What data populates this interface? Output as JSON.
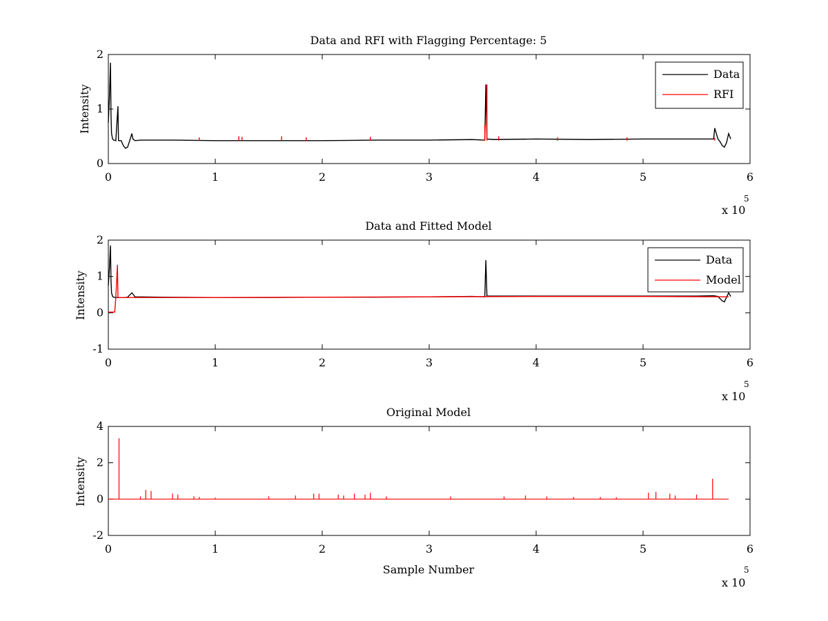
{
  "colors": {
    "data": "#000000",
    "rfi": "#ff0000",
    "background": "#ffffff"
  },
  "chart_data": [
    {
      "type": "line",
      "title": "Data and RFI with Flagging Percentage: 5",
      "xlabel": "",
      "ylabel": "Intensity",
      "xlim": [
        0,
        6
      ],
      "ylim": [
        0,
        2
      ],
      "x_multiplier": "x 10",
      "x_multiplier_exp": "5",
      "xticks": [
        "0",
        "1",
        "2",
        "3",
        "4",
        "5",
        "6"
      ],
      "yticks": [
        "0",
        "1",
        "2"
      ],
      "legend": {
        "position": "top-right",
        "entries": [
          "Data",
          "RFI"
        ]
      },
      "grid": false,
      "series": [
        {
          "name": "Data",
          "color": "#000000",
          "x": [
            0,
            0.01,
            0.02,
            0.025,
            0.03,
            0.04,
            0.05,
            0.07,
            0.09,
            0.095,
            0.1,
            0.12,
            0.14,
            0.16,
            0.18,
            0.2,
            0.22,
            0.23,
            0.25,
            0.3,
            0.6,
            1.0,
            1.5,
            2.0,
            2.5,
            3.0,
            3.4,
            3.52,
            3.53,
            3.54,
            3.6,
            4.0,
            4.5,
            5.0,
            5.5,
            5.66,
            5.67,
            5.7,
            5.72,
            5.74,
            5.76,
            5.78,
            5.8,
            5.82
          ],
          "y": [
            0.75,
            1.2,
            1.85,
            0.9,
            0.55,
            0.45,
            0.43,
            0.42,
            1.05,
            0.42,
            0.42,
            0.42,
            0.33,
            0.28,
            0.3,
            0.42,
            0.55,
            0.45,
            0.42,
            0.43,
            0.43,
            0.42,
            0.42,
            0.42,
            0.43,
            0.43,
            0.44,
            0.43,
            1.45,
            0.45,
            0.44,
            0.45,
            0.44,
            0.45,
            0.45,
            0.45,
            0.65,
            0.45,
            0.4,
            0.33,
            0.3,
            0.38,
            0.55,
            0.45
          ]
        },
        {
          "name": "RFI",
          "color": "#ff0000",
          "x": [
            0.85,
            1.22,
            1.25,
            1.62,
            1.85,
            2.45,
            3.52,
            3.54,
            3.65,
            4.2,
            4.85,
            5.67
          ],
          "y": [
            0.48,
            0.5,
            0.49,
            0.5,
            0.48,
            0.49,
            0.7,
            1.45,
            0.5,
            0.48,
            0.48,
            0.47
          ]
        }
      ]
    },
    {
      "type": "line",
      "title": "Data and Fitted Model",
      "xlabel": "",
      "ylabel": "Intensity",
      "xlim": [
        0,
        6
      ],
      "ylim": [
        -1,
        2
      ],
      "x_multiplier": "x 10",
      "x_multiplier_exp": "5",
      "xticks": [
        "0",
        "1",
        "2",
        "3",
        "4",
        "5",
        "6"
      ],
      "yticks": [
        "-1",
        "0",
        "1",
        "2"
      ],
      "legend": {
        "position": "top-right",
        "entries": [
          "Data",
          "Model"
        ]
      },
      "grid": false,
      "series": [
        {
          "name": "Data",
          "color": "#000000",
          "x": [
            0,
            0.01,
            0.02,
            0.025,
            0.03,
            0.04,
            0.05,
            0.07,
            0.09,
            0.1,
            0.15,
            0.18,
            0.22,
            0.25,
            0.5,
            1.0,
            1.5,
            2.0,
            2.5,
            3.0,
            3.4,
            3.52,
            3.53,
            3.54,
            4.0,
            4.5,
            5.0,
            5.5,
            5.66,
            5.7,
            5.74,
            5.76,
            5.8,
            5.82
          ],
          "y": [
            0.75,
            1.2,
            1.85,
            0.9,
            0.55,
            0.45,
            0.43,
            0.42,
            0.42,
            0.42,
            0.42,
            0.43,
            0.55,
            0.44,
            0.43,
            0.42,
            0.42,
            0.43,
            0.43,
            0.44,
            0.45,
            0.44,
            1.45,
            0.46,
            0.46,
            0.46,
            0.46,
            0.46,
            0.47,
            0.45,
            0.33,
            0.3,
            0.55,
            0.45
          ]
        },
        {
          "name": "Model",
          "color": "#ff0000",
          "x": [
            0,
            0.06,
            0.07,
            0.085,
            0.09,
            0.1,
            0.5,
            1.0,
            2.0,
            3.0,
            4.0,
            5.0,
            5.8
          ],
          "y": [
            0.02,
            0.02,
            0.42,
            1.32,
            0.42,
            0.42,
            0.42,
            0.42,
            0.43,
            0.44,
            0.45,
            0.45,
            0.44
          ]
        }
      ]
    },
    {
      "type": "line",
      "title": "Original Model",
      "xlabel": "Sample Number",
      "ylabel": "Intensity",
      "xlim": [
        0,
        6
      ],
      "ylim": [
        -2,
        4
      ],
      "x_multiplier": "x 10",
      "x_multiplier_exp": "5",
      "xticks": [
        "0",
        "1",
        "2",
        "3",
        "4",
        "5",
        "6"
      ],
      "yticks": [
        "-2",
        "0",
        "2",
        "4"
      ],
      "legend": null,
      "grid": false,
      "series": [
        {
          "name": "Model",
          "color": "#ff0000",
          "baseline": 0,
          "x_end": 5.8,
          "spikes": [
            [
              0.1,
              3.35
            ],
            [
              0.3,
              0.15
            ],
            [
              0.35,
              0.5
            ],
            [
              0.4,
              0.45
            ],
            [
              0.6,
              0.3
            ],
            [
              0.65,
              0.25
            ],
            [
              0.8,
              0.15
            ],
            [
              0.85,
              0.12
            ],
            [
              1.0,
              0.08
            ],
            [
              1.5,
              0.15
            ],
            [
              1.75,
              0.2
            ],
            [
              1.92,
              0.3
            ],
            [
              1.97,
              0.3
            ],
            [
              2.15,
              0.25
            ],
            [
              2.2,
              0.2
            ],
            [
              2.3,
              0.3
            ],
            [
              2.4,
              0.25
            ],
            [
              2.45,
              0.35
            ],
            [
              2.6,
              0.15
            ],
            [
              3.2,
              0.15
            ],
            [
              3.7,
              0.15
            ],
            [
              3.9,
              0.2
            ],
            [
              4.1,
              0.15
            ],
            [
              4.35,
              0.12
            ],
            [
              4.6,
              0.12
            ],
            [
              4.75,
              0.1
            ],
            [
              5.05,
              0.35
            ],
            [
              5.12,
              0.4
            ],
            [
              5.25,
              0.3
            ],
            [
              5.3,
              0.2
            ],
            [
              5.5,
              0.25
            ],
            [
              5.65,
              1.12
            ]
          ]
        }
      ]
    }
  ]
}
